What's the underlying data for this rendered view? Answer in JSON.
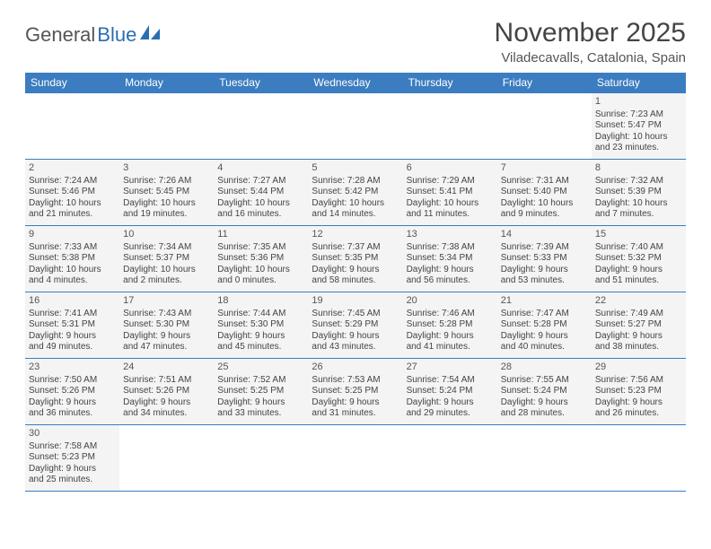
{
  "logo": {
    "general": "General",
    "blue": "Blue"
  },
  "title": "November 2025",
  "location": "Viladecavalls, Catalonia, Spain",
  "colors": {
    "header_bg": "#3b7dc0",
    "header_fg": "#ffffff",
    "cell_bg": "#f4f4f4",
    "border": "#3b7dc0",
    "title_fg": "#444444",
    "location_fg": "#555555",
    "logo_general": "#555555",
    "logo_blue": "#2a6db4"
  },
  "weekdays": [
    "Sunday",
    "Monday",
    "Tuesday",
    "Wednesday",
    "Thursday",
    "Friday",
    "Saturday"
  ],
  "weeks": [
    [
      null,
      null,
      null,
      null,
      null,
      null,
      {
        "d": "1",
        "sr": "Sunrise: 7:23 AM",
        "ss": "Sunset: 5:47 PM",
        "dl1": "Daylight: 10 hours",
        "dl2": "and 23 minutes."
      }
    ],
    [
      {
        "d": "2",
        "sr": "Sunrise: 7:24 AM",
        "ss": "Sunset: 5:46 PM",
        "dl1": "Daylight: 10 hours",
        "dl2": "and 21 minutes."
      },
      {
        "d": "3",
        "sr": "Sunrise: 7:26 AM",
        "ss": "Sunset: 5:45 PM",
        "dl1": "Daylight: 10 hours",
        "dl2": "and 19 minutes."
      },
      {
        "d": "4",
        "sr": "Sunrise: 7:27 AM",
        "ss": "Sunset: 5:44 PM",
        "dl1": "Daylight: 10 hours",
        "dl2": "and 16 minutes."
      },
      {
        "d": "5",
        "sr": "Sunrise: 7:28 AM",
        "ss": "Sunset: 5:42 PM",
        "dl1": "Daylight: 10 hours",
        "dl2": "and 14 minutes."
      },
      {
        "d": "6",
        "sr": "Sunrise: 7:29 AM",
        "ss": "Sunset: 5:41 PM",
        "dl1": "Daylight: 10 hours",
        "dl2": "and 11 minutes."
      },
      {
        "d": "7",
        "sr": "Sunrise: 7:31 AM",
        "ss": "Sunset: 5:40 PM",
        "dl1": "Daylight: 10 hours",
        "dl2": "and 9 minutes."
      },
      {
        "d": "8",
        "sr": "Sunrise: 7:32 AM",
        "ss": "Sunset: 5:39 PM",
        "dl1": "Daylight: 10 hours",
        "dl2": "and 7 minutes."
      }
    ],
    [
      {
        "d": "9",
        "sr": "Sunrise: 7:33 AM",
        "ss": "Sunset: 5:38 PM",
        "dl1": "Daylight: 10 hours",
        "dl2": "and 4 minutes."
      },
      {
        "d": "10",
        "sr": "Sunrise: 7:34 AM",
        "ss": "Sunset: 5:37 PM",
        "dl1": "Daylight: 10 hours",
        "dl2": "and 2 minutes."
      },
      {
        "d": "11",
        "sr": "Sunrise: 7:35 AM",
        "ss": "Sunset: 5:36 PM",
        "dl1": "Daylight: 10 hours",
        "dl2": "and 0 minutes."
      },
      {
        "d": "12",
        "sr": "Sunrise: 7:37 AM",
        "ss": "Sunset: 5:35 PM",
        "dl1": "Daylight: 9 hours",
        "dl2": "and 58 minutes."
      },
      {
        "d": "13",
        "sr": "Sunrise: 7:38 AM",
        "ss": "Sunset: 5:34 PM",
        "dl1": "Daylight: 9 hours",
        "dl2": "and 56 minutes."
      },
      {
        "d": "14",
        "sr": "Sunrise: 7:39 AM",
        "ss": "Sunset: 5:33 PM",
        "dl1": "Daylight: 9 hours",
        "dl2": "and 53 minutes."
      },
      {
        "d": "15",
        "sr": "Sunrise: 7:40 AM",
        "ss": "Sunset: 5:32 PM",
        "dl1": "Daylight: 9 hours",
        "dl2": "and 51 minutes."
      }
    ],
    [
      {
        "d": "16",
        "sr": "Sunrise: 7:41 AM",
        "ss": "Sunset: 5:31 PM",
        "dl1": "Daylight: 9 hours",
        "dl2": "and 49 minutes."
      },
      {
        "d": "17",
        "sr": "Sunrise: 7:43 AM",
        "ss": "Sunset: 5:30 PM",
        "dl1": "Daylight: 9 hours",
        "dl2": "and 47 minutes."
      },
      {
        "d": "18",
        "sr": "Sunrise: 7:44 AM",
        "ss": "Sunset: 5:30 PM",
        "dl1": "Daylight: 9 hours",
        "dl2": "and 45 minutes."
      },
      {
        "d": "19",
        "sr": "Sunrise: 7:45 AM",
        "ss": "Sunset: 5:29 PM",
        "dl1": "Daylight: 9 hours",
        "dl2": "and 43 minutes."
      },
      {
        "d": "20",
        "sr": "Sunrise: 7:46 AM",
        "ss": "Sunset: 5:28 PM",
        "dl1": "Daylight: 9 hours",
        "dl2": "and 41 minutes."
      },
      {
        "d": "21",
        "sr": "Sunrise: 7:47 AM",
        "ss": "Sunset: 5:28 PM",
        "dl1": "Daylight: 9 hours",
        "dl2": "and 40 minutes."
      },
      {
        "d": "22",
        "sr": "Sunrise: 7:49 AM",
        "ss": "Sunset: 5:27 PM",
        "dl1": "Daylight: 9 hours",
        "dl2": "and 38 minutes."
      }
    ],
    [
      {
        "d": "23",
        "sr": "Sunrise: 7:50 AM",
        "ss": "Sunset: 5:26 PM",
        "dl1": "Daylight: 9 hours",
        "dl2": "and 36 minutes."
      },
      {
        "d": "24",
        "sr": "Sunrise: 7:51 AM",
        "ss": "Sunset: 5:26 PM",
        "dl1": "Daylight: 9 hours",
        "dl2": "and 34 minutes."
      },
      {
        "d": "25",
        "sr": "Sunrise: 7:52 AM",
        "ss": "Sunset: 5:25 PM",
        "dl1": "Daylight: 9 hours",
        "dl2": "and 33 minutes."
      },
      {
        "d": "26",
        "sr": "Sunrise: 7:53 AM",
        "ss": "Sunset: 5:25 PM",
        "dl1": "Daylight: 9 hours",
        "dl2": "and 31 minutes."
      },
      {
        "d": "27",
        "sr": "Sunrise: 7:54 AM",
        "ss": "Sunset: 5:24 PM",
        "dl1": "Daylight: 9 hours",
        "dl2": "and 29 minutes."
      },
      {
        "d": "28",
        "sr": "Sunrise: 7:55 AM",
        "ss": "Sunset: 5:24 PM",
        "dl1": "Daylight: 9 hours",
        "dl2": "and 28 minutes."
      },
      {
        "d": "29",
        "sr": "Sunrise: 7:56 AM",
        "ss": "Sunset: 5:23 PM",
        "dl1": "Daylight: 9 hours",
        "dl2": "and 26 minutes."
      }
    ],
    [
      {
        "d": "30",
        "sr": "Sunrise: 7:58 AM",
        "ss": "Sunset: 5:23 PM",
        "dl1": "Daylight: 9 hours",
        "dl2": "and 25 minutes."
      },
      null,
      null,
      null,
      null,
      null,
      null
    ]
  ]
}
